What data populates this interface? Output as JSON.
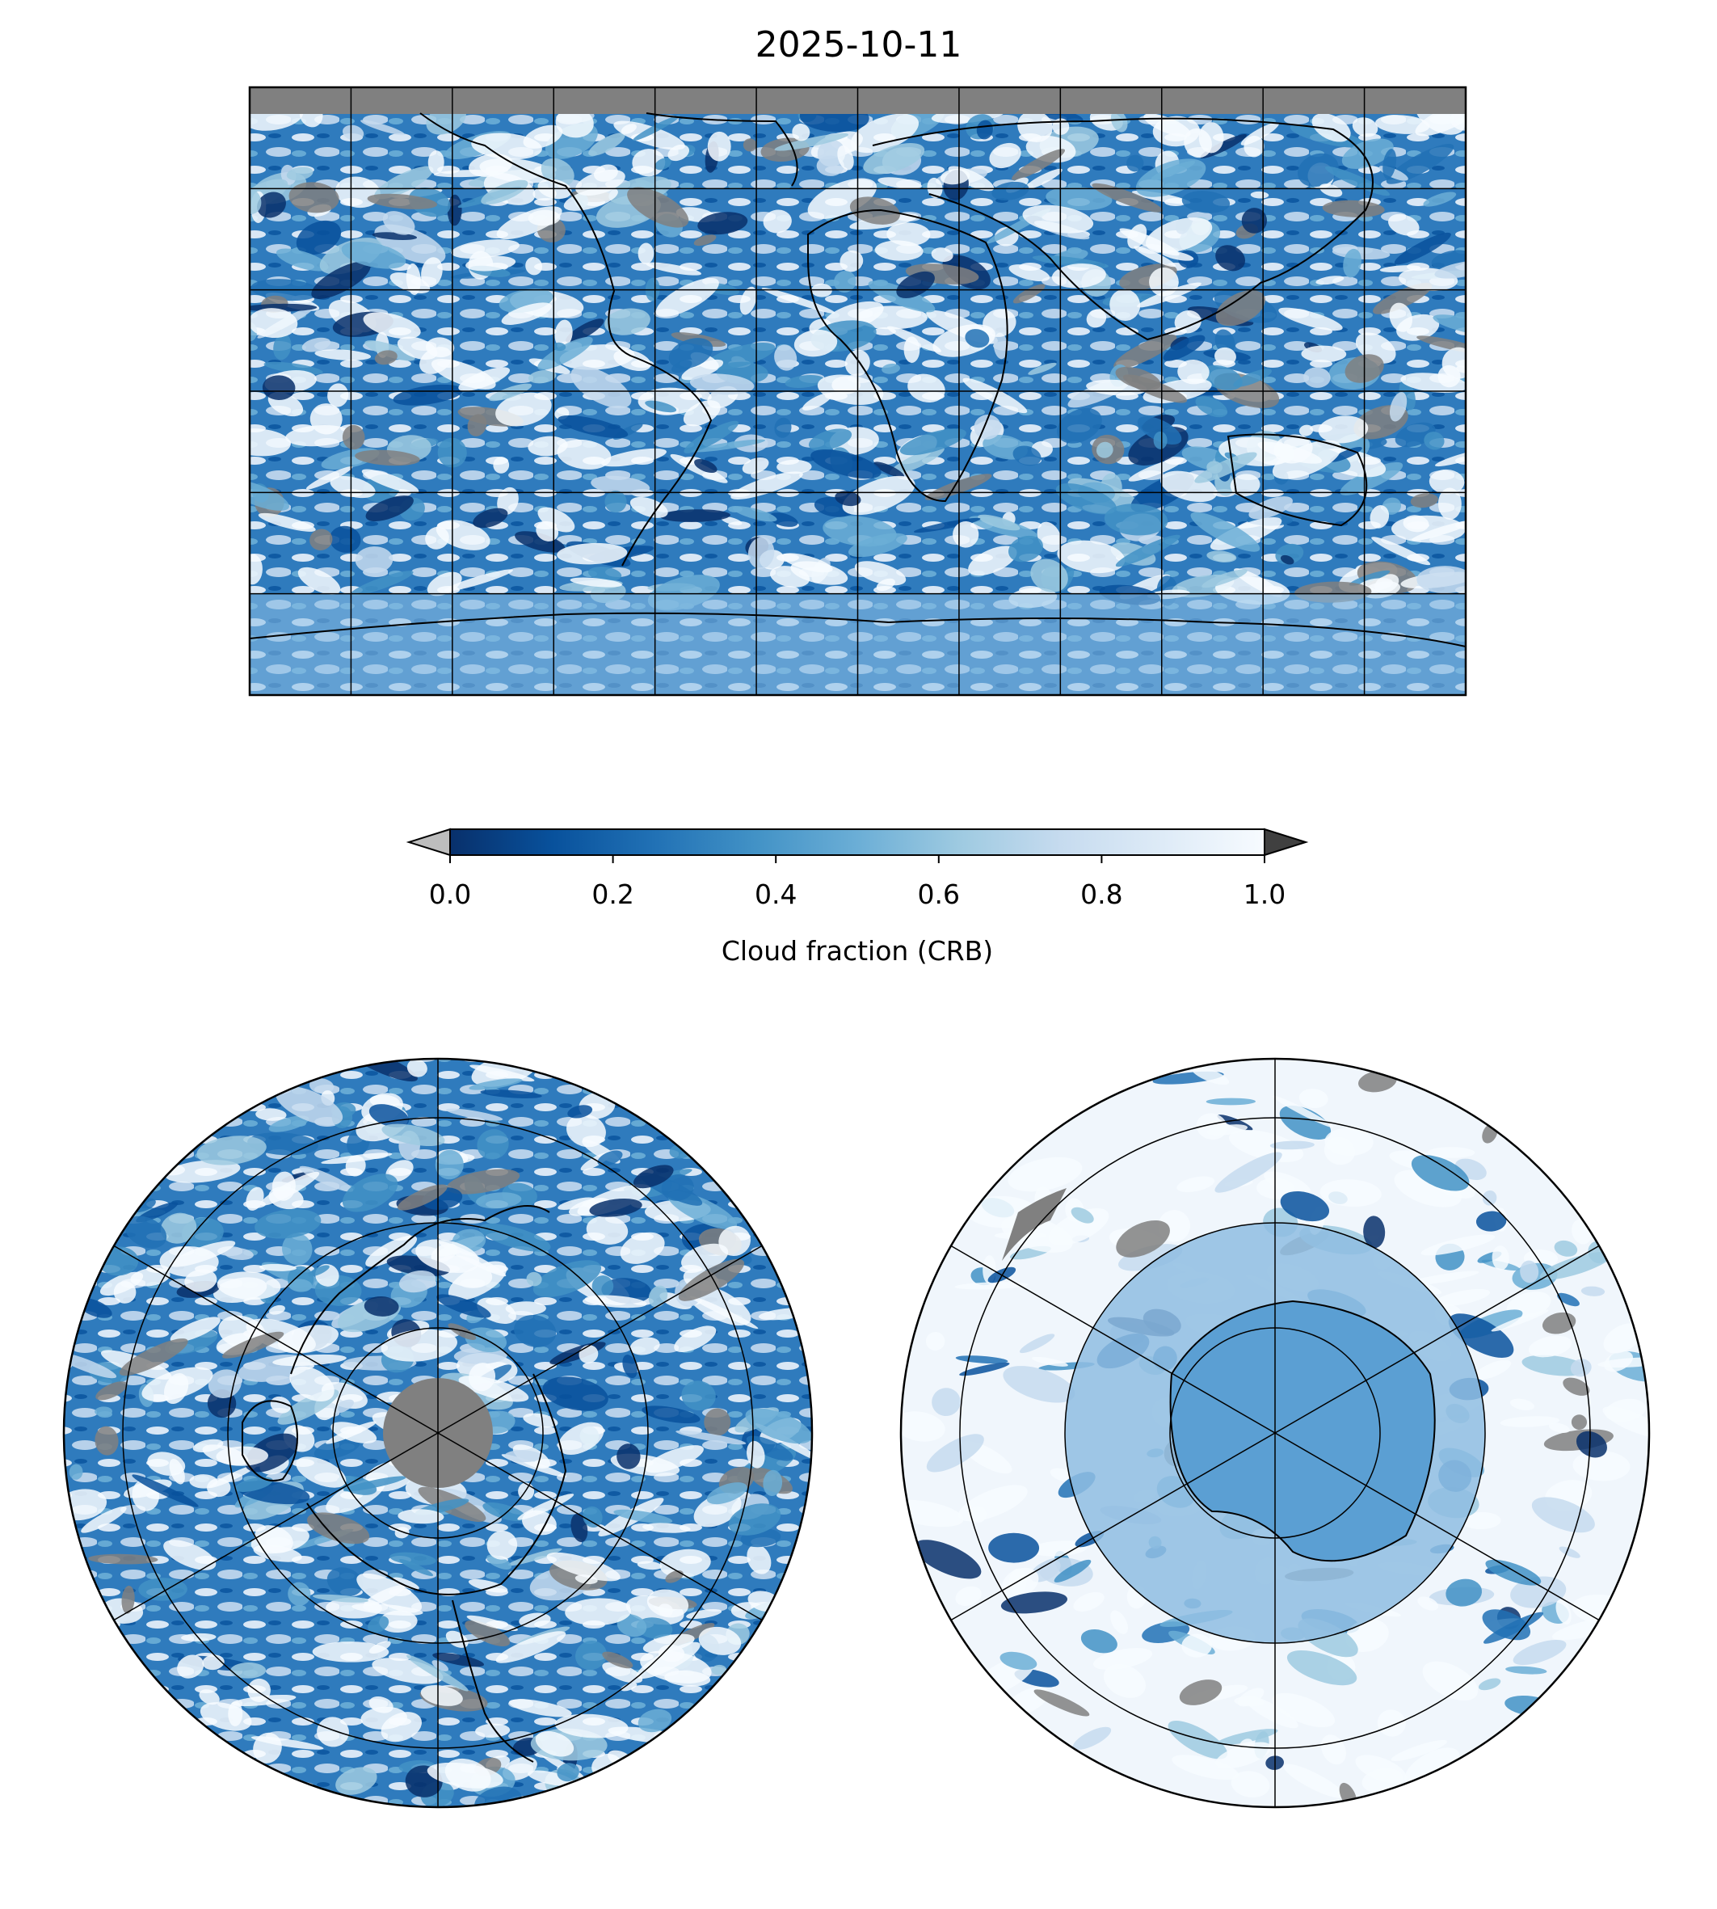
{
  "title": "2025-10-11",
  "colorbar": {
    "label": "Cloud fraction (CRB)",
    "ticks": [
      "0.0",
      "0.2",
      "0.4",
      "0.6",
      "0.8",
      "1.0"
    ],
    "tick_values": [
      0.0,
      0.2,
      0.4,
      0.6,
      0.8,
      1.0
    ],
    "range": [
      0.0,
      1.0
    ],
    "extend": "both",
    "under_color": "#bdbdbd",
    "over_color": "#404040",
    "colormap": "Blues_r",
    "colors": [
      "#08306b",
      "#08519c",
      "#2171b5",
      "#4292c6",
      "#6baed6",
      "#9ecae1",
      "#c6dbef",
      "#deebf7",
      "#f7fbff"
    ]
  },
  "colors": {
    "missing_data": "#808080",
    "coastline": "#000000",
    "gridline": "#000000"
  },
  "maps": [
    {
      "name": "global",
      "projection": "plate-carree",
      "gridlines": true
    },
    {
      "name": "north-pole",
      "projection": "north-polar-stereographic",
      "gridlines": true
    },
    {
      "name": "south-pole",
      "projection": "south-polar-stereographic",
      "gridlines": true
    }
  ]
}
